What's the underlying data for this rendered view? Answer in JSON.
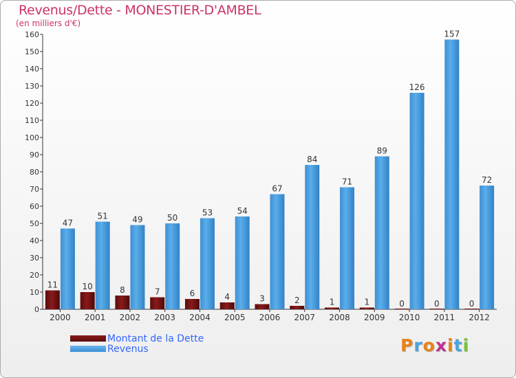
{
  "header": {
    "title": "Revenus/Dette - MONESTIER-D'AMBEL",
    "subtitle": "(en milliers d'€)"
  },
  "legend": {
    "debt_label": "Montant de la Dette",
    "revenue_label": "Revenus"
  },
  "logo": {
    "text": "Proxiti",
    "letters": [
      "P",
      "r",
      "o",
      "x",
      "i",
      "t",
      "i"
    ]
  },
  "colors": {
    "title": "#cc3366",
    "debt": "#7a1414",
    "revenue": "#4fa3e6",
    "legend_text": "#3366ff",
    "logo_letters": [
      "#e8821a",
      "#4aa3df",
      "#e8821a",
      "#c03090",
      "#e8821a",
      "#4aa3df",
      "#7cc242"
    ]
  },
  "chart_data": {
    "type": "bar",
    "title": "Revenus/Dette - MONESTIER-D'AMBEL",
    "ylabel": "(en milliers d'€)",
    "xlabel": "",
    "categories": [
      "2000",
      "2001",
      "2002",
      "2003",
      "2004",
      "2005",
      "2006",
      "2007",
      "2008",
      "2009",
      "2010",
      "2011",
      "2012"
    ],
    "series": [
      {
        "name": "Montant de la Dette",
        "values": [
          11,
          10,
          8,
          7,
          6,
          4,
          3,
          2,
          1,
          1,
          0,
          0,
          0
        ]
      },
      {
        "name": "Revenus",
        "values": [
          47,
          51,
          49,
          50,
          53,
          54,
          67,
          84,
          71,
          89,
          126,
          157,
          72
        ]
      }
    ],
    "ylim": [
      0,
      160
    ],
    "yticks": [
      0,
      10,
      20,
      30,
      40,
      50,
      60,
      70,
      80,
      90,
      100,
      110,
      120,
      130,
      140,
      150,
      160
    ],
    "grid": false,
    "legend_position": "bottom-left"
  }
}
